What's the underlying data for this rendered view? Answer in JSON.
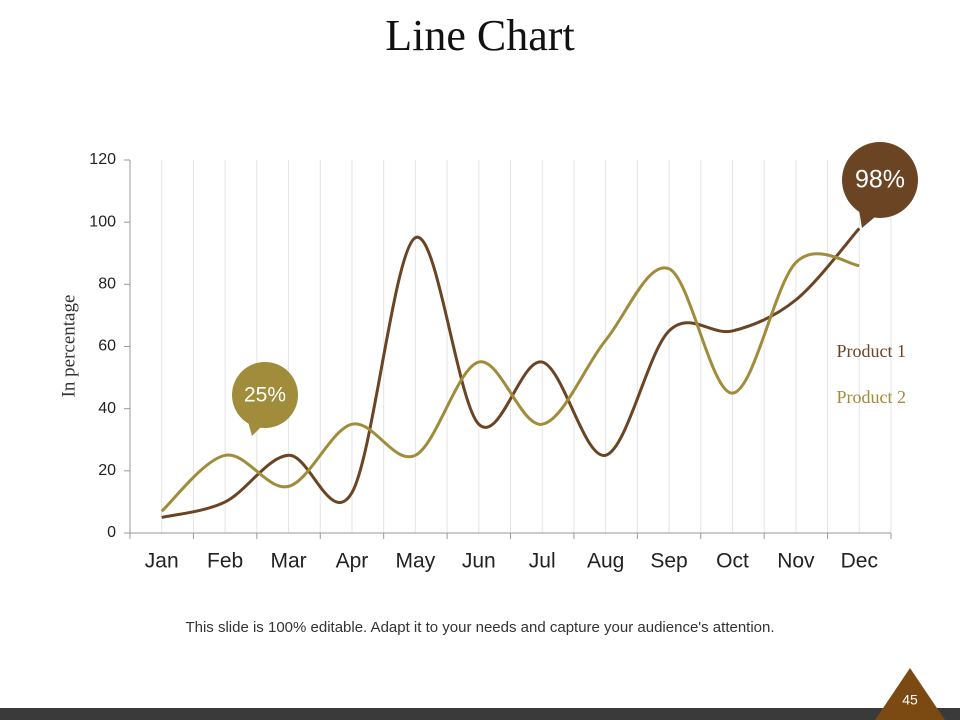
{
  "chart_data": {
    "type": "line",
    "title": "Line Chart",
    "y_label": "In percentage",
    "categories": [
      "Jan",
      "Feb",
      "Mar",
      "Apr",
      "May",
      "Jun",
      "Jul",
      "Aug",
      "Sep",
      "Oct",
      "Nov",
      "Dec"
    ],
    "series": [
      {
        "name": "Product 1",
        "color": "#6b4423",
        "values": [
          5,
          10,
          25,
          13,
          95,
          35,
          55,
          25,
          65,
          65,
          75,
          98
        ]
      },
      {
        "name": "Product 2",
        "color": "#a08c3a",
        "values": [
          7,
          25,
          15,
          35,
          25,
          55,
          35,
          62,
          85,
          45,
          87,
          86
        ]
      }
    ],
    "ylim": [
      0,
      120
    ],
    "yticks": [
      0,
      20,
      40,
      60,
      80,
      100,
      120
    ],
    "grid": true,
    "annotations": [
      {
        "text": "25%",
        "color": "#a08c3a"
      },
      {
        "text": "98%",
        "color": "#6b4423"
      }
    ],
    "footnote": "This slide is 100% editable. Adapt it to your needs and capture your audience's attention.",
    "page_number": "45"
  }
}
